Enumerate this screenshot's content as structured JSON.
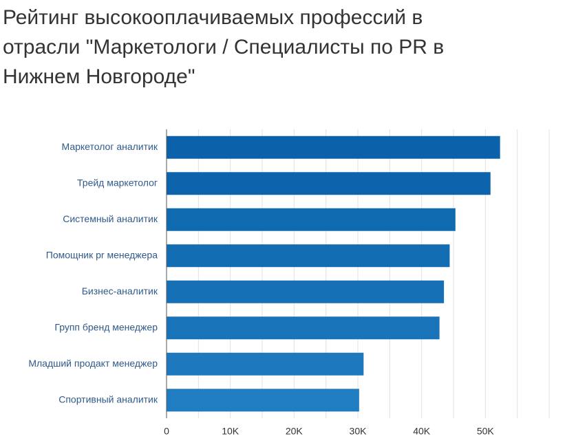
{
  "chart_data": {
    "type": "barh",
    "title": "Рейтинг высокооплачиваемых профессий в отрасли \"Маркетологи / Специалисты по PR в Нижнем Новгороде\"",
    "categories": [
      "Маркетолог аналитик",
      "Трейд маркетолог",
      "Системный аналитик",
      "Помощник pr менеджера",
      "Бизнес-аналитик",
      "Групп бренд менеджер",
      "Младший продакт менеджер",
      "Спортивный аналитик"
    ],
    "values": [
      52300,
      50800,
      45300,
      44400,
      43500,
      42800,
      30900,
      30200
    ],
    "colors": [
      "#0b62ab",
      "#0c64ad",
      "#106aaf",
      "#136db3",
      "#1670b6",
      "#1973b9",
      "#1d78bd",
      "#217dc2"
    ],
    "xlim": [
      0,
      60000
    ],
    "xticks": [
      0,
      {
        "value": 10000,
        "label": "10K"
      },
      {
        "value": 20000,
        "label": "20K"
      },
      {
        "value": 30000,
        "label": "30K"
      },
      {
        "value": 40000,
        "label": "40K"
      },
      {
        "value": 50000,
        "label": "50K"
      }
    ],
    "minor_grid": [
      5000,
      15000,
      25000,
      35000,
      45000,
      55000,
      60000
    ],
    "grid": true
  }
}
